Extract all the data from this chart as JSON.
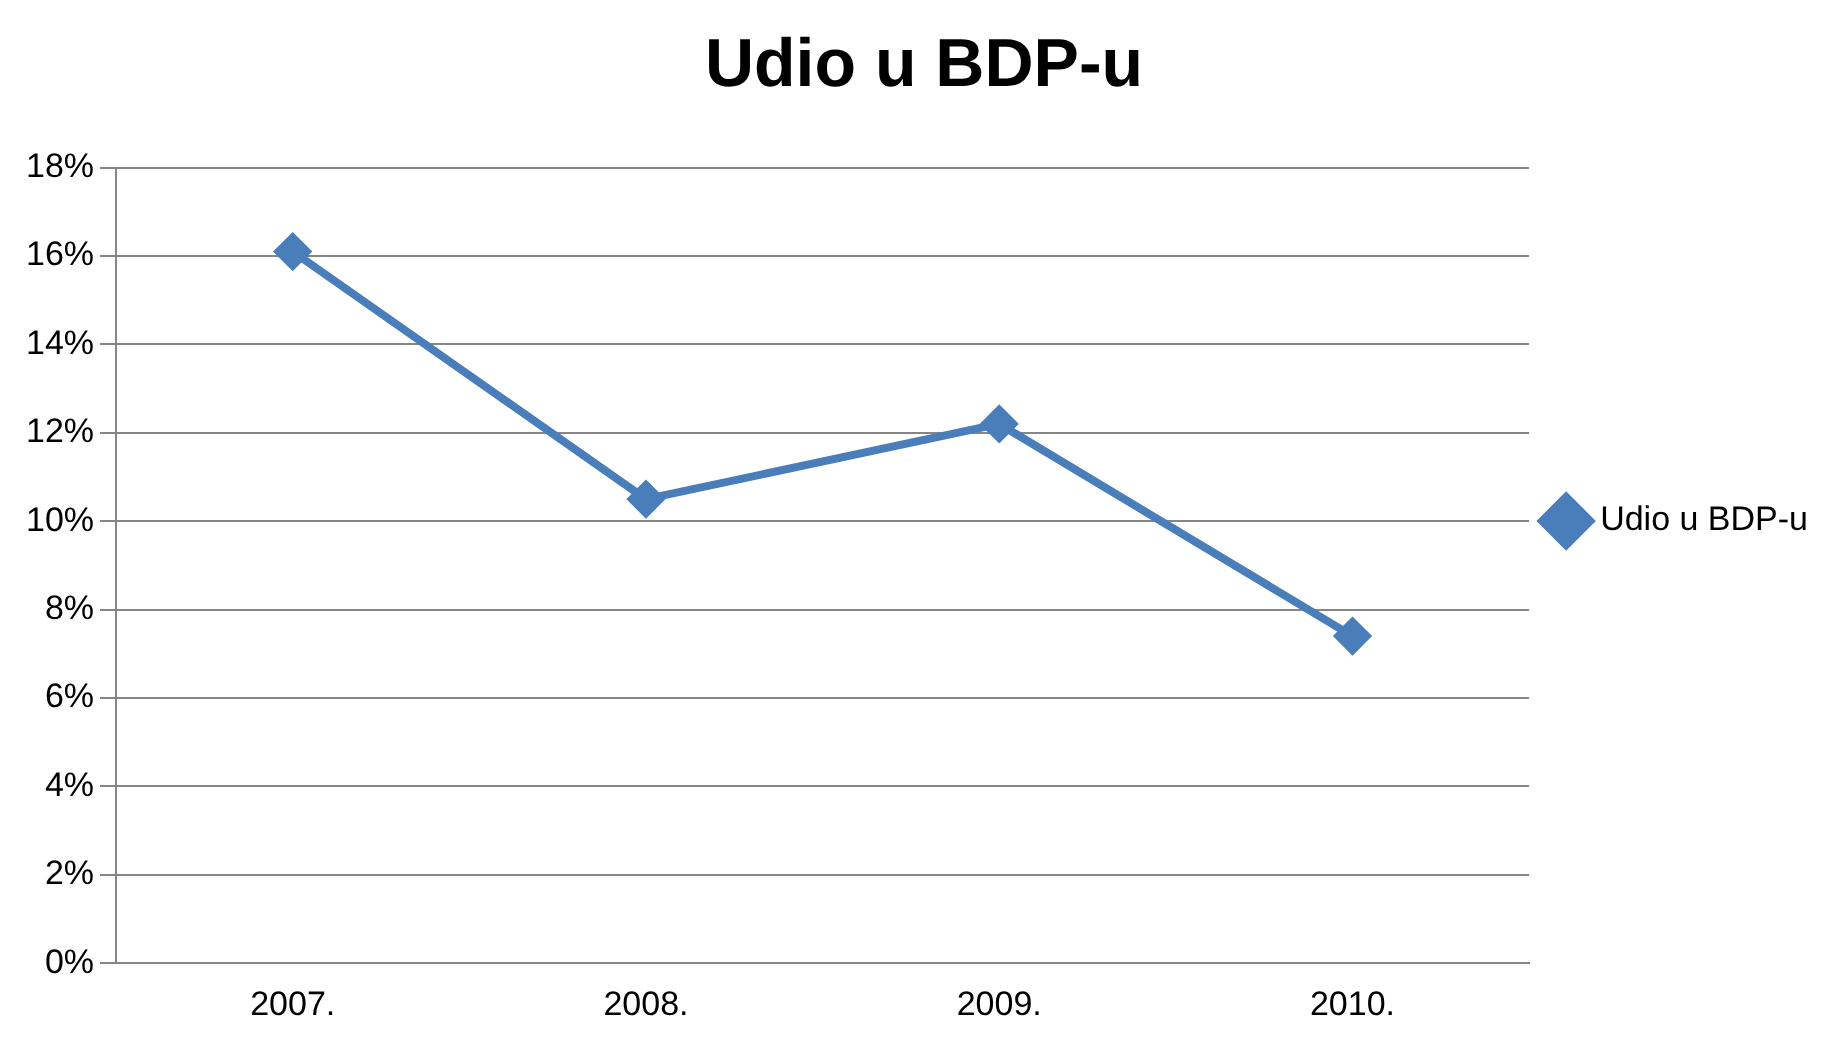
{
  "chart_data": {
    "type": "line",
    "title": "Udio u BDP-u",
    "categories": [
      "2007.",
      "2008.",
      "2009.",
      "2010."
    ],
    "series": [
      {
        "name": "Udio u BDP-u",
        "color": "#4a7ebb",
        "values": [
          16.1,
          10.5,
          12.2,
          7.4
        ]
      }
    ],
    "ylim": [
      0,
      18
    ],
    "yticks": [
      {
        "value": 0,
        "label": "0%"
      },
      {
        "value": 2,
        "label": "2%"
      },
      {
        "value": 4,
        "label": "4%"
      },
      {
        "value": 6,
        "label": "6%"
      },
      {
        "value": 8,
        "label": "8%"
      },
      {
        "value": 10,
        "label": "10%"
      },
      {
        "value": 12,
        "label": "12%"
      },
      {
        "value": 14,
        "label": "14%"
      },
      {
        "value": 16,
        "label": "16%"
      },
      {
        "value": 18,
        "label": "18%"
      }
    ],
    "grid": "y",
    "legend": "right",
    "marker": "diamond",
    "line_style": "solid"
  }
}
